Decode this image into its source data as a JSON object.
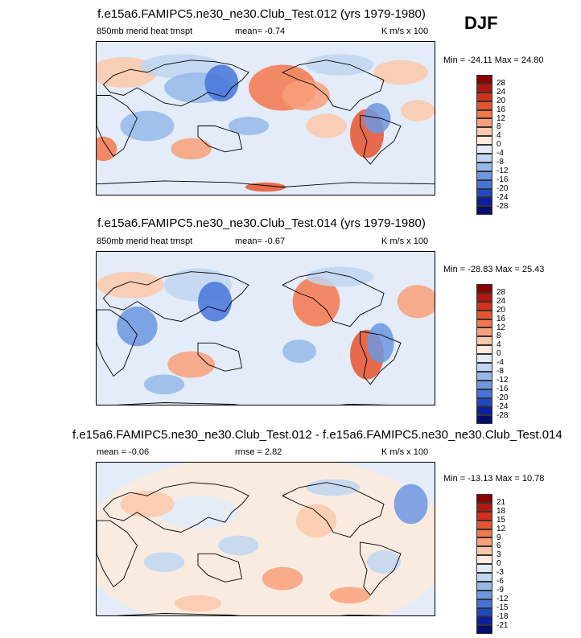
{
  "season": "DJF",
  "panels": [
    {
      "title": "f.e15a6.FAMIPC5.ne30_ne30.Club_Test.012 (yrs 1979-1980)",
      "left_label": "850mb merid heat trnspt",
      "center_label": "mean=  -0.74",
      "units": "K m/s x 100",
      "min_max": "Min = -24.11 Max =  24.80"
    },
    {
      "title": "f.e15a6.FAMIPC5.ne30_ne30.Club_Test.014 (yrs 1979-1980)",
      "left_label": "850mb merid heat trnspt",
      "center_label": "mean=  -0.67",
      "units": "K m/s x 100",
      "min_max": "Min = -28.83 Max =  25.43"
    },
    {
      "title": "f.e15a6.FAMIPC5.ne30_ne30.Club_Test.012 - f.e15a6.FAMIPC5.ne30_ne30.Club_Test.014",
      "left_label": "mean =  -0.06",
      "center_label": "rmse =   2.82",
      "units": "K m/s x 100",
      "min_max": "Min = -13.13 Max =  10.78"
    }
  ],
  "chart_data": [
    {
      "type": "heatmap",
      "title": "f.e15a6.FAMIPC5.ne30_ne30.Club_Test.012 (yrs 1979-1980)",
      "variable": "850mb merid heat trnspt",
      "units": "K m/s x 100",
      "mean": -0.74,
      "min": -24.11,
      "max": 24.8,
      "contour_levels": [
        28,
        24,
        20,
        16,
        12,
        8,
        4,
        0,
        -4,
        -8,
        -12,
        -16,
        -20,
        -24,
        -28
      ],
      "legend_labels": [
        "28",
        "24",
        "20",
        "16",
        "12",
        "8",
        "4",
        "0",
        "-4",
        "-8",
        "-12",
        "-16",
        "-20",
        "-24",
        "-28"
      ],
      "legend_colors": [
        "#8b0000",
        "#b3160f",
        "#d2301a",
        "#e8542e",
        "#f4784c",
        "#f9a07a",
        "#fbc9aa",
        "#fdebdc",
        "#e3ecf8",
        "#c0d6f2",
        "#95b8ea",
        "#6c97e2",
        "#4574d9",
        "#2148c4",
        "#0c1ea0",
        "#050d6e"
      ]
    },
    {
      "type": "heatmap",
      "title": "f.e15a6.FAMIPC5.ne30_ne30.Club_Test.014 (yrs 1979-1980)",
      "variable": "850mb merid heat trnspt",
      "units": "K m/s x 100",
      "mean": -0.67,
      "min": -28.83,
      "max": 25.43,
      "contour_levels": [
        28,
        24,
        20,
        16,
        12,
        8,
        4,
        0,
        -4,
        -8,
        -12,
        -16,
        -20,
        -24,
        -28
      ],
      "legend_labels": [
        "28",
        "24",
        "20",
        "16",
        "12",
        "8",
        "4",
        "0",
        "-4",
        "-8",
        "-12",
        "-16",
        "-20",
        "-24",
        "-28"
      ],
      "legend_colors": [
        "#8b0000",
        "#b3160f",
        "#d2301a",
        "#e8542e",
        "#f4784c",
        "#f9a07a",
        "#fbc9aa",
        "#fdebdc",
        "#e3ecf8",
        "#c0d6f2",
        "#95b8ea",
        "#6c97e2",
        "#4574d9",
        "#2148c4",
        "#0c1ea0",
        "#050d6e"
      ]
    },
    {
      "type": "heatmap",
      "title": "f.e15a6.FAMIPC5.ne30_ne30.Club_Test.012 - f.e15a6.FAMIPC5.ne30_ne30.Club_Test.014",
      "units": "K m/s x 100",
      "mean": -0.06,
      "rmse": 2.82,
      "min": -13.13,
      "max": 10.78,
      "contour_levels": [
        21,
        18,
        15,
        12,
        9,
        6,
        3,
        0,
        -3,
        -6,
        -9,
        -12,
        -15,
        -18,
        -21
      ],
      "legend_labels": [
        "21",
        "18",
        "15",
        "12",
        "9",
        "6",
        "3",
        "0",
        "-3",
        "-6",
        "-9",
        "-12",
        "-15",
        "-18",
        "-21"
      ],
      "legend_colors": [
        "#8b0000",
        "#b3160f",
        "#d2301a",
        "#e8542e",
        "#f4784c",
        "#f9a07a",
        "#fbc9aa",
        "#fdebdc",
        "#e3ecf8",
        "#c0d6f2",
        "#95b8ea",
        "#6c97e2",
        "#4574d9",
        "#2148c4",
        "#0c1ea0",
        "#050d6e"
      ]
    }
  ]
}
